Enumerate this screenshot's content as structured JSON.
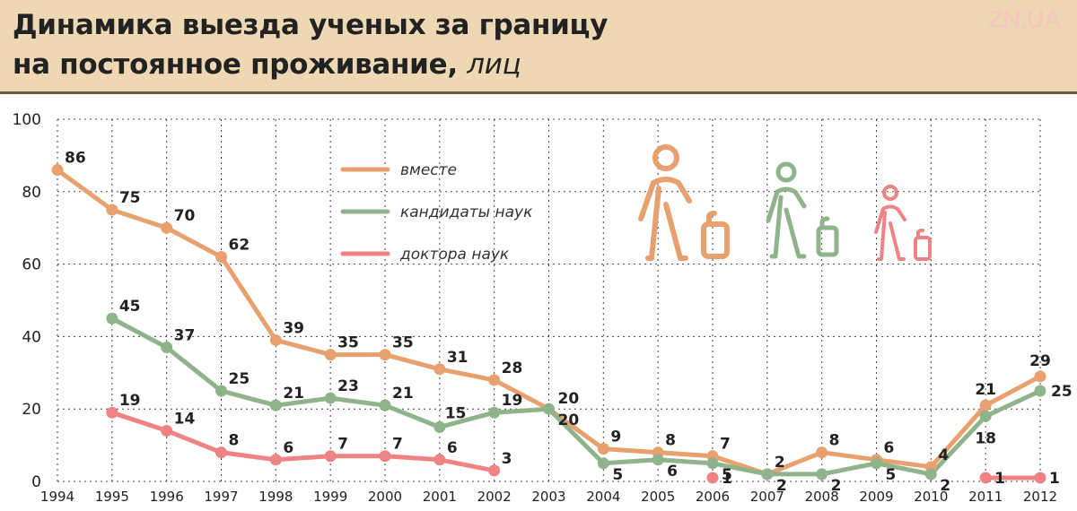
{
  "header": {
    "title_line1": "Динамика выезда ученых за границу",
    "title_line2": "на постоянное проживание,",
    "title_unit": "лиц",
    "logo": "ZN,UA"
  },
  "colors": {
    "header_bg": "#edd8b3",
    "vmeste": "#e8a06e",
    "kandidaty": "#8fb38a",
    "doktora": "#ef8383"
  },
  "icons": [
    "traveler-large-icon",
    "traveler-medium-icon",
    "traveler-small-icon"
  ],
  "chart_data": {
    "type": "line",
    "title": "Динамика выезда ученых за границу на постоянное проживание, лиц",
    "xlabel": "",
    "ylabel": "",
    "ylim": [
      0,
      100
    ],
    "yticks": [
      0,
      20,
      40,
      60,
      80,
      100
    ],
    "grid": true,
    "legend_position": "top-left",
    "x": [
      "1994",
      "1995",
      "1996",
      "1997",
      "1998",
      "1999",
      "2000",
      "2001",
      "2002",
      "2003",
      "2004",
      "2005",
      "2006",
      "2007",
      "2008",
      "2009",
      "2010",
      "2011",
      "2012"
    ],
    "series": [
      {
        "name": "вместе",
        "color": "#e8a06e",
        "values": [
          86,
          75,
          70,
          62,
          39,
          35,
          35,
          31,
          28,
          20,
          9,
          8,
          7,
          2,
          8,
          6,
          4,
          21,
          29
        ],
        "labels": [
          "86",
          "75",
          "70",
          "62",
          "39",
          "35",
          "35",
          "31",
          "28",
          "",
          "9",
          "8",
          "7",
          "2",
          "8",
          "6",
          "4",
          "21",
          "29"
        ]
      },
      {
        "name": "кандидаты наук",
        "color": "#8fb38a",
        "values": [
          null,
          45,
          37,
          25,
          21,
          23,
          21,
          15,
          19,
          20,
          5,
          6,
          5,
          2,
          2,
          5,
          2,
          18,
          25
        ],
        "labels": [
          "",
          "45",
          "37",
          "25",
          "21",
          "23",
          "21",
          "15",
          "19",
          "20",
          "5",
          "6",
          "5",
          "2",
          "2",
          "5",
          "2",
          "18",
          "25"
        ]
      },
      {
        "name": "доктора наук",
        "color": "#ef8383",
        "values": [
          null,
          19,
          14,
          8,
          6,
          7,
          7,
          6,
          3,
          null,
          null,
          null,
          1,
          null,
          null,
          null,
          null,
          1,
          1
        ],
        "labels": [
          "",
          "19",
          "14",
          "8",
          "6",
          "7",
          "7",
          "6",
          "3",
          "",
          "",
          "",
          "1",
          "",
          "",
          "",
          "",
          "1",
          "1"
        ]
      }
    ],
    "extra_labels": [
      {
        "x": "2003",
        "text": "20"
      }
    ]
  }
}
